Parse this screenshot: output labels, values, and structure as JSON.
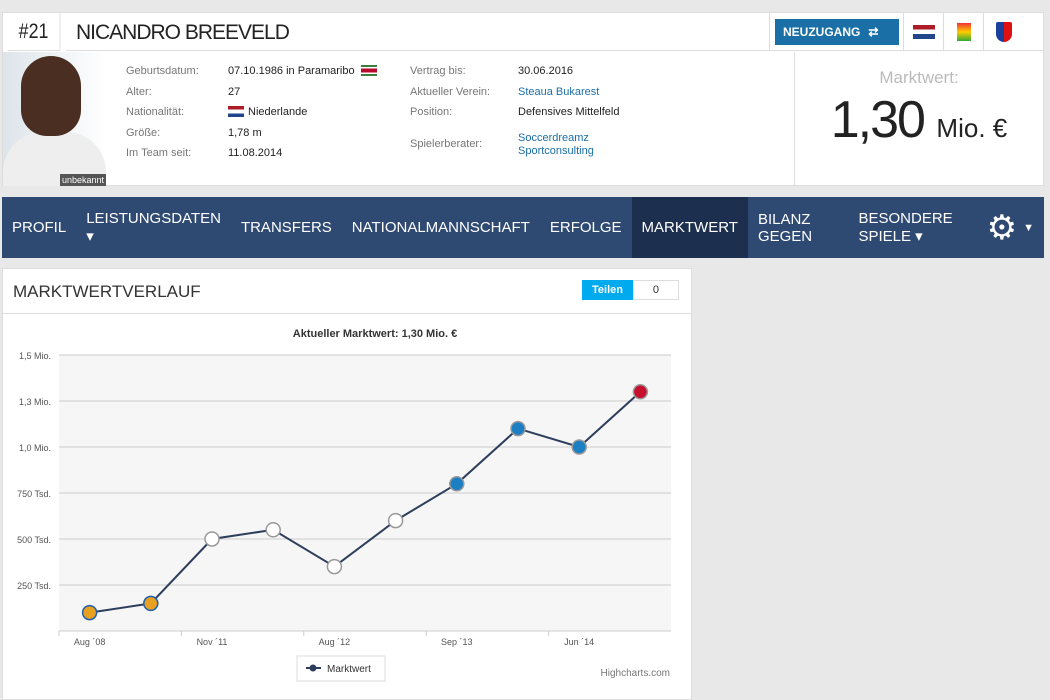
{
  "player": {
    "number": "#21",
    "name": "NICANDRO BREEVELD",
    "badge": "NEUZUGANG",
    "photo_caption": "unbekannt"
  },
  "info_left": [
    {
      "label": "Geburtsdatum:",
      "value": "07.10.1986 in Paramaribo"
    },
    {
      "label": "Alter:",
      "value": "27"
    },
    {
      "label": "Nationalität:",
      "value": "Niederlande"
    },
    {
      "label": "Größe:",
      "value": "1,78 m"
    },
    {
      "label": "Im Team seit:",
      "value": "11.08.2014"
    }
  ],
  "info_right": [
    {
      "label": "Vertrag bis:",
      "value": "30.06.2016"
    },
    {
      "label": "Aktueller Verein:",
      "value": "Steaua Bukarest"
    },
    {
      "label": "Position:",
      "value": "Defensives Mittelfeld"
    },
    {
      "label": "Spielerberater:",
      "value": "Soccerdreamz",
      "value2": "Sportconsulting"
    }
  ],
  "market": {
    "label": "Marktwert:",
    "value": "1,30",
    "unit": "Mio. €"
  },
  "nav": [
    "PROFIL",
    "LEISTUNGSDATEN ▾",
    "TRANSFERS",
    "NATIONALMANNSCHAFT",
    "ERFOLGE",
    "MARKTWERT",
    "BILANZ GEGEN",
    "BESONDERE SPIELE ▾"
  ],
  "section": {
    "title": "MARKTWERTVERLAUF",
    "share": "Teilen",
    "share_count": "0",
    "credit": "Highcharts.com"
  },
  "colors": {
    "nav": "#2f4a72",
    "nav_active": "#1c2f4f",
    "link": "#1a6fa6",
    "line": "#2c3e5c"
  },
  "chart_data": {
    "type": "line",
    "title": "Aktueller Marktwert: 1,30 Mio. €",
    "categories": [
      "Aug ´08",
      "",
      "Nov ´11",
      "",
      "Aug ´12",
      "",
      "Sep ´13",
      "",
      "Jun ´14",
      ""
    ],
    "series": [
      {
        "name": "Marktwert",
        "values": [
          100000,
          150000,
          500000,
          550000,
          350000,
          600000,
          800000,
          1100000,
          1000000,
          1300000
        ]
      }
    ],
    "ylim": [
      0,
      1500000
    ],
    "yticks": [
      {
        "v": 250000,
        "l": "250 Tsd."
      },
      {
        "v": 500000,
        "l": "500 Tsd."
      },
      {
        "v": 750000,
        "l": "750 Tsd."
      },
      {
        "v": 1000000,
        "l": "1,0 Mio."
      },
      {
        "v": 1250000,
        "l": "1,3 Mio."
      },
      {
        "v": 1500000,
        "l": "1,5 Mio."
      }
    ],
    "legend": "bottom-center",
    "grid": true
  }
}
